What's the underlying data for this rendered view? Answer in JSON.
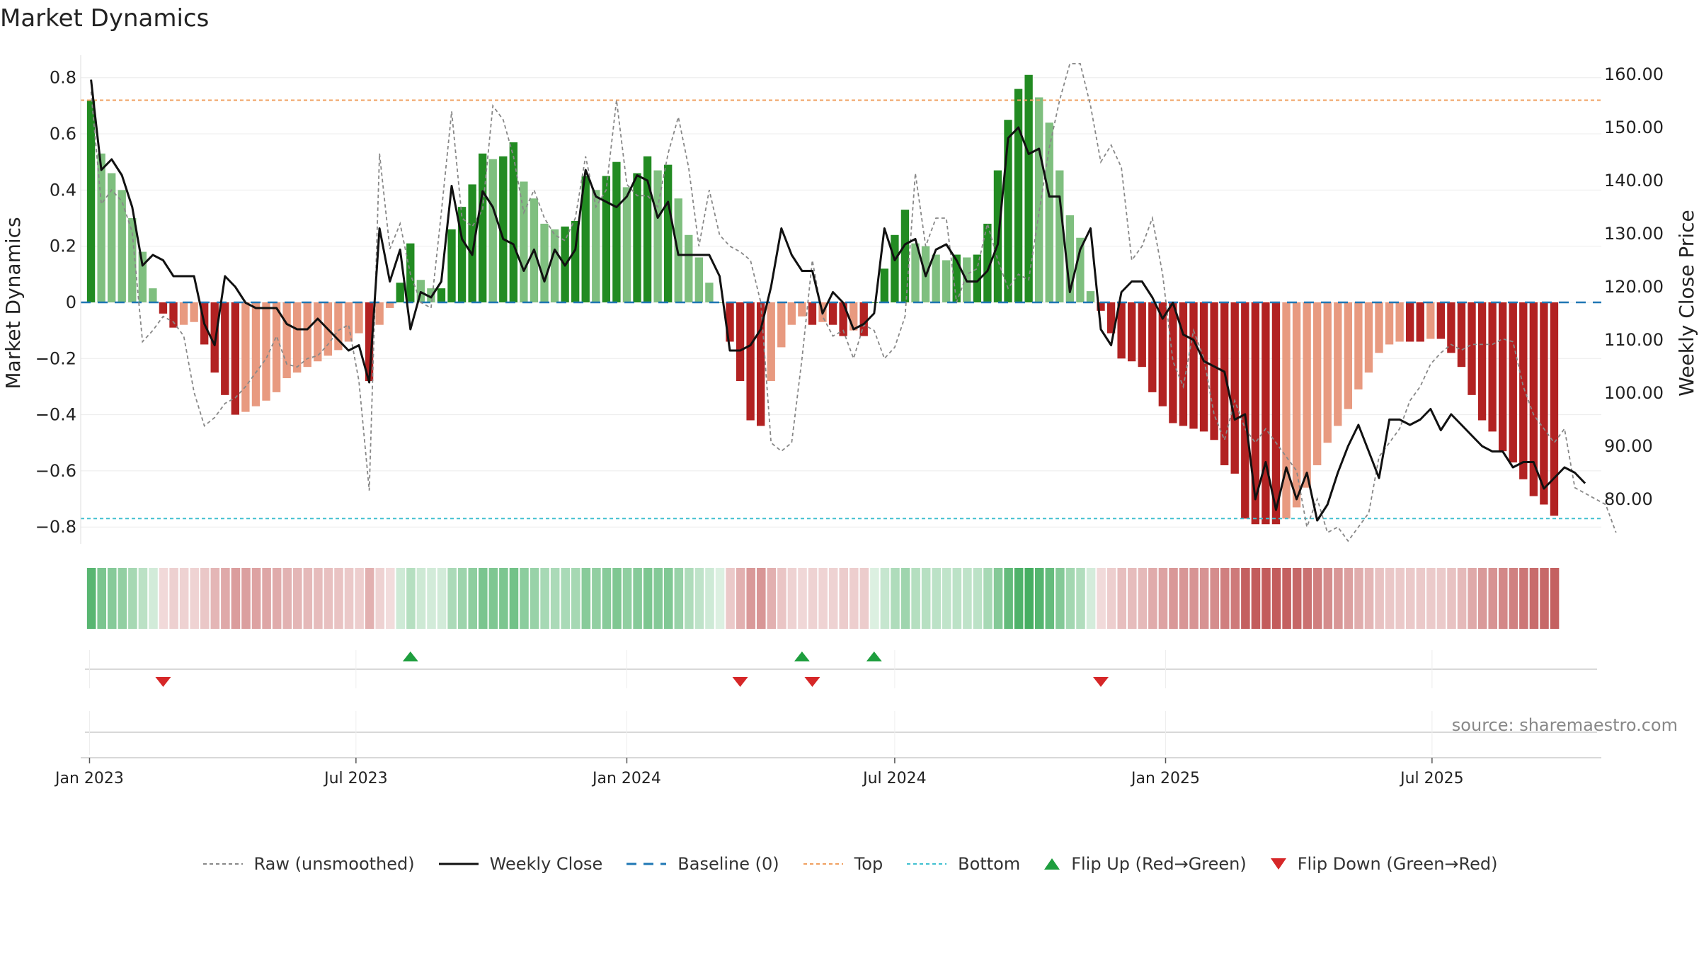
{
  "title": "Market Dynamics",
  "source": "source: sharemaestro.com",
  "colors": {
    "strong_green": "#228b22",
    "light_green": "#7fbf7f",
    "strong_red": "#b22222",
    "light_red": "#e89a80",
    "price_line": "#111111",
    "raw_line": "#888888",
    "baseline": "#1f77b4",
    "top": "#f0a060",
    "bottom": "#40c0d0",
    "flip_up": "#1e9e3e",
    "flip_down": "#d62728"
  },
  "legend": [
    {
      "key": "raw",
      "label": "Raw (unsmoothed)"
    },
    {
      "key": "close",
      "label": "Weekly Close"
    },
    {
      "key": "baseline",
      "label": "Baseline (0)"
    },
    {
      "key": "top",
      "label": "Top"
    },
    {
      "key": "bottom",
      "label": "Bottom"
    },
    {
      "key": "flip_up",
      "label": "Flip Up (Red→Green)"
    },
    {
      "key": "flip_down",
      "label": "Flip Down (Green→Red)"
    }
  ],
  "chart_data": {
    "type": "bar",
    "ylabel": "Market Dynamics",
    "y2label": "Weekly Close Price",
    "ylim": [
      -0.86,
      0.88
    ],
    "y2lim": [
      71.6,
      163.6
    ],
    "yticks": [
      0.8,
      0.6,
      0.4,
      0.2,
      0,
      -0.2,
      -0.4,
      -0.6,
      -0.8
    ],
    "ytick_labels": [
      "0.8",
      "0.6",
      "0.4",
      "0.2",
      "0",
      "−0.2",
      "−0.4",
      "−0.6",
      "−0.8"
    ],
    "y2ticks": [
      160,
      150,
      140,
      130,
      120,
      110,
      100,
      90,
      80
    ],
    "y2tick_labels": [
      "160.00",
      "150.00",
      "140.00",
      "130.00",
      "120.00",
      "110.00",
      "100.00",
      "90.00",
      "80.00"
    ],
    "xlim": [
      "2022-12-26",
      "2025-10-24"
    ],
    "start_date": "2023-01-02",
    "week_step_days": 7,
    "xticks": [
      {
        "date": "2023-01-01",
        "label": "Jan 2023"
      },
      {
        "date": "2023-07-01",
        "label": "Jul 2023"
      },
      {
        "date": "2024-01-01",
        "label": "Jan 2024"
      },
      {
        "date": "2024-07-01",
        "label": "Jul 2024"
      },
      {
        "date": "2025-01-01",
        "label": "Jan 2025"
      },
      {
        "date": "2025-07-01",
        "label": "Jul 2025"
      }
    ],
    "top_level": 0.72,
    "bottom_level": -0.77,
    "series": [
      {
        "name": "Raw (unsmoothed)",
        "values": [
          0.75,
          0.35,
          0.4,
          0.36,
          0.25,
          -0.14,
          -0.1,
          -0.05,
          -0.07,
          -0.12,
          -0.32,
          -0.44,
          -0.41,
          -0.36,
          -0.34,
          -0.3,
          -0.25,
          -0.2,
          -0.12,
          -0.22,
          -0.23,
          -0.2,
          -0.19,
          -0.15,
          -0.1,
          -0.08,
          -0.28,
          -0.67,
          0.53,
          0.19,
          0.28,
          0.1,
          0.0,
          -0.02,
          0.32,
          0.68,
          0.3,
          0.27,
          0.33,
          0.7,
          0.65,
          0.52,
          0.32,
          0.4,
          0.3,
          0.24,
          0.22,
          0.3,
          0.52,
          0.34,
          0.4,
          0.72,
          0.42,
          0.38,
          0.38,
          0.34,
          0.53,
          0.66,
          0.48,
          0.2,
          0.4,
          0.24,
          0.2,
          0.18,
          0.15,
          0.0,
          -0.5,
          -0.53,
          -0.5,
          -0.2,
          0.15,
          -0.05,
          -0.12,
          -0.1,
          -0.2,
          -0.08,
          -0.1,
          -0.2,
          -0.16,
          -0.05,
          0.46,
          0.2,
          0.3,
          0.3,
          0.0,
          0.1,
          0.12,
          0.28,
          0.15,
          0.05,
          0.1,
          0.08,
          0.32,
          0.55,
          0.72,
          0.85,
          0.85,
          0.7,
          0.5,
          0.56,
          0.48,
          0.15,
          0.2,
          0.3,
          0.1,
          -0.21,
          -0.3,
          -0.1,
          -0.2,
          -0.4,
          -0.49,
          -0.35,
          -0.45,
          -0.5,
          -0.45,
          -0.5,
          -0.55,
          -0.6,
          -0.8,
          -0.7,
          -0.82,
          -0.8,
          -0.85,
          -0.8,
          -0.75,
          -0.55,
          -0.5,
          -0.45,
          -0.35,
          -0.3,
          -0.22,
          -0.18,
          -0.15,
          -0.17,
          -0.15,
          -0.15,
          -0.15,
          -0.13,
          -0.14,
          -0.3,
          -0.4,
          -0.45,
          -0.5,
          -0.45,
          -0.66,
          -0.68,
          -0.7,
          -0.72,
          -0.82
        ]
      },
      {
        "name": "Weekly Close",
        "values": [
          159,
          142,
          144,
          141,
          135,
          124,
          126,
          125,
          122,
          122,
          122,
          113,
          109,
          122,
          120,
          117,
          116,
          116,
          116,
          113,
          112,
          112,
          114,
          112,
          110,
          108,
          109,
          102,
          131,
          121,
          127,
          112,
          119,
          118,
          121,
          139,
          129,
          126,
          138,
          135,
          129,
          128,
          123,
          127,
          121,
          127,
          124,
          127,
          142,
          137,
          136,
          135,
          137,
          141,
          140,
          133,
          136,
          126,
          126,
          126,
          126,
          122,
          108,
          108,
          109,
          112,
          120,
          131,
          126,
          123,
          123,
          115,
          119,
          117,
          112,
          113,
          115,
          131,
          125,
          128,
          129,
          122,
          127,
          128,
          125,
          121,
          121,
          123,
          128,
          148,
          150,
          145,
          146,
          137,
          137,
          119,
          127,
          131,
          112,
          109,
          119,
          121,
          121,
          118,
          114,
          117,
          111,
          110,
          106,
          105,
          104,
          95,
          96,
          80,
          87,
          78,
          86,
          80,
          85,
          76,
          79,
          85,
          90,
          94,
          89,
          84,
          95,
          95,
          94,
          95,
          97,
          93,
          96,
          94,
          92,
          90,
          89,
          89,
          86,
          87,
          87,
          82,
          84,
          86,
          85,
          83
        ]
      },
      {
        "name": "Market Dynamics",
        "values": [
          0.72,
          0.53,
          0.46,
          0.4,
          0.3,
          0.18,
          0.05,
          -0.04,
          -0.09,
          -0.08,
          -0.07,
          -0.15,
          -0.25,
          -0.33,
          -0.4,
          -0.39,
          -0.37,
          -0.35,
          -0.32,
          -0.27,
          -0.25,
          -0.23,
          -0.21,
          -0.19,
          -0.17,
          -0.14,
          -0.11,
          -0.28,
          -0.08,
          -0.02,
          0.07,
          0.21,
          0.08,
          0.05,
          0.05,
          0.26,
          0.34,
          0.42,
          0.53,
          0.51,
          0.52,
          0.57,
          0.43,
          0.37,
          0.28,
          0.26,
          0.27,
          0.29,
          0.45,
          0.4,
          0.45,
          0.5,
          0.41,
          0.46,
          0.52,
          0.47,
          0.49,
          0.37,
          0.24,
          0.16,
          0.07,
          0.0,
          -0.14,
          -0.28,
          -0.42,
          -0.44,
          -0.28,
          -0.16,
          -0.08,
          -0.05,
          -0.08,
          -0.07,
          -0.08,
          -0.12,
          -0.1,
          -0.12,
          0.0,
          0.12,
          0.24,
          0.33,
          0.21,
          0.2,
          0.17,
          0.15,
          0.17,
          0.16,
          0.17,
          0.28,
          0.47,
          0.65,
          0.76,
          0.81,
          0.73,
          0.64,
          0.47,
          0.31,
          0.23,
          0.04,
          -0.03,
          -0.11,
          -0.2,
          -0.21,
          -0.23,
          -0.32,
          -0.37,
          -0.43,
          -0.44,
          -0.45,
          -0.46,
          -0.49,
          -0.58,
          -0.61,
          -0.77,
          -0.79,
          -0.79,
          -0.79,
          -0.77,
          -0.73,
          -0.66,
          -0.58,
          -0.5,
          -0.44,
          -0.38,
          -0.31,
          -0.25,
          -0.18,
          -0.15,
          -0.14,
          -0.14,
          -0.14,
          -0.13,
          -0.13,
          -0.18,
          -0.23,
          -0.33,
          -0.42,
          -0.46,
          -0.53,
          -0.57,
          -0.63,
          -0.69,
          -0.72,
          -0.76
        ]
      },
      {
        "name": "Flip Up (Red→Green)",
        "dates": [
          "2023-08-07",
          "2024-04-29",
          "2024-06-17"
        ]
      },
      {
        "name": "Flip Down (Green→Red)",
        "dates": [
          "2023-02-20",
          "2024-03-18",
          "2024-05-06",
          "2024-11-18"
        ]
      }
    ]
  }
}
